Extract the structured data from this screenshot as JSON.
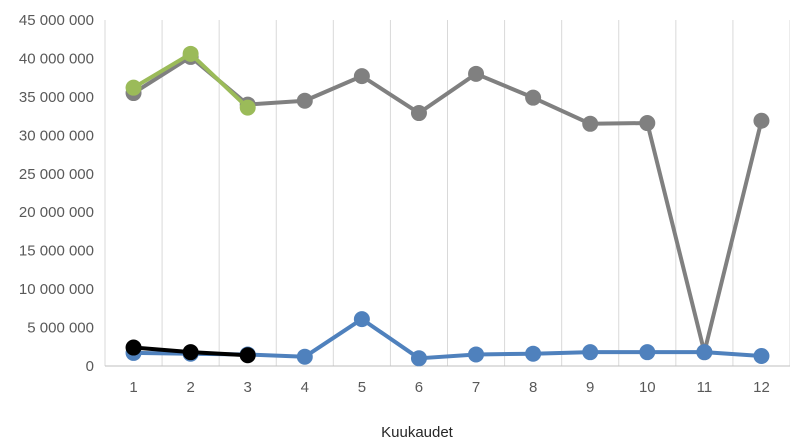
{
  "chart_data": {
    "type": "line",
    "title": "",
    "xlabel": "Kuukaudet",
    "ylabel": "",
    "ylim": [
      0,
      45000000
    ],
    "y_ticks": [
      {
        "value": 0,
        "label": "0"
      },
      {
        "value": 5000000,
        "label": "5 000 000"
      },
      {
        "value": 10000000,
        "label": "10 000 000"
      },
      {
        "value": 15000000,
        "label": "15 000 000"
      },
      {
        "value": 20000000,
        "label": "20 000 000"
      },
      {
        "value": 25000000,
        "label": "25 000 000"
      },
      {
        "value": 30000000,
        "label": "30 000 000"
      },
      {
        "value": 35000000,
        "label": "35 000 000"
      },
      {
        "value": 40000000,
        "label": "40 000 000"
      },
      {
        "value": 45000000,
        "label": "45 000 000"
      }
    ],
    "categories": [
      "1",
      "2",
      "3",
      "4",
      "5",
      "6",
      "7",
      "8",
      "9",
      "10",
      "11",
      "12"
    ],
    "grid": "vertical",
    "legend": "none",
    "series": [
      {
        "color": "#808080",
        "values": [
          35500000,
          40200000,
          34000000,
          34500000,
          37700000,
          32900000,
          38000000,
          34900000,
          31500000,
          31600000,
          1800000,
          31900000
        ]
      },
      {
        "color": "#9BBB59",
        "values": [
          36200000,
          40600000,
          33600000,
          null,
          null,
          null,
          null,
          null,
          null,
          null,
          null,
          null
        ]
      },
      {
        "color": "#4F81BD",
        "values": [
          1700000,
          1600000,
          1500000,
          1200000,
          6100000,
          1000000,
          1500000,
          1600000,
          1800000,
          1800000,
          1800000,
          1300000
        ]
      },
      {
        "color": "#000000",
        "values": [
          2400000,
          1800000,
          1400000,
          null,
          null,
          null,
          null,
          null,
          null,
          null,
          null,
          null
        ]
      }
    ]
  }
}
